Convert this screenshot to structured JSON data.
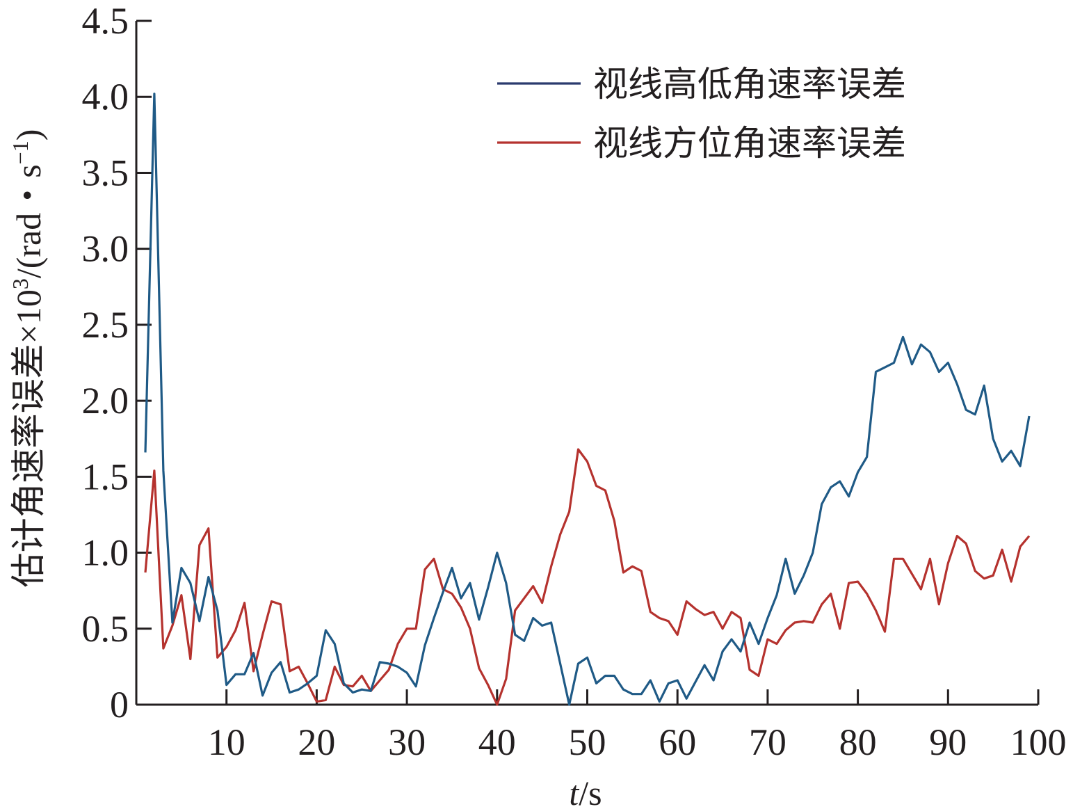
{
  "chart_data": {
    "type": "line",
    "xlabel_italic": "t",
    "xlabel_rest": "/s",
    "ylabel_main": "估计角速率误差×10",
    "ylabel_exp": "3",
    "ylabel_unit": "/(rad・s",
    "ylabel_unit_exp": "−1",
    "ylabel_close": ")",
    "xlim": [
      0,
      100
    ],
    "ylim": [
      0,
      4.5
    ],
    "x_ticks": [
      10,
      20,
      30,
      40,
      50,
      60,
      70,
      80,
      90,
      100
    ],
    "x_tick_labels": [
      "10",
      "20",
      "30",
      "40",
      "50",
      "60",
      "70",
      "80",
      "90",
      "100"
    ],
    "y_ticks": [
      0,
      0.5,
      1.0,
      1.5,
      2.0,
      2.5,
      3.0,
      3.5,
      4.0,
      4.5
    ],
    "y_tick_labels": [
      "0",
      "0.5",
      "1.0",
      "1.5",
      "2.0",
      "2.5",
      "3.0",
      "3.5",
      "4.0",
      "4.5"
    ],
    "legend_position": "top-right",
    "colors": {
      "axis": "#231f20",
      "elevation": "#1f5a86",
      "elevation_legend": "#2b3a6e",
      "azimuth": "#b5322e"
    },
    "series": [
      {
        "name": "视线高低角速率误差",
        "color": "#1f5a86",
        "legend_color": "#2b3a6e",
        "x": [
          1,
          2,
          3,
          4,
          5,
          6,
          7,
          8,
          9,
          10,
          11,
          12,
          13,
          14,
          15,
          16,
          17,
          18,
          19,
          20,
          21,
          22,
          23,
          24,
          25,
          26,
          27,
          28,
          29,
          30,
          31,
          32,
          33,
          34,
          35,
          36,
          37,
          38,
          39,
          40,
          41,
          42,
          43,
          44,
          45,
          46,
          47,
          48,
          49,
          50,
          51,
          52,
          53,
          54,
          55,
          56,
          57,
          58,
          59,
          60,
          61,
          62,
          63,
          64,
          65,
          66,
          67,
          68,
          69,
          70,
          71,
          72,
          73,
          74,
          75,
          76,
          77,
          78,
          79,
          80,
          81,
          82,
          83,
          84,
          85,
          86,
          87,
          88,
          89,
          90,
          91,
          92,
          93,
          94,
          95,
          96,
          97,
          98,
          99
        ],
        "values": [
          1.66,
          4.02,
          1.54,
          0.54,
          0.9,
          0.8,
          0.55,
          0.84,
          0.62,
          0.13,
          0.2,
          0.2,
          0.34,
          0.06,
          0.21,
          0.28,
          0.08,
          0.1,
          0.14,
          0.19,
          0.49,
          0.4,
          0.14,
          0.08,
          0.1,
          0.09,
          0.28,
          0.27,
          0.25,
          0.21,
          0.12,
          0.39,
          0.57,
          0.74,
          0.9,
          0.7,
          0.8,
          0.56,
          0.77,
          1.0,
          0.8,
          0.46,
          0.42,
          0.57,
          0.52,
          0.54,
          0.27,
          0.0,
          0.27,
          0.31,
          0.14,
          0.19,
          0.19,
          0.1,
          0.07,
          0.07,
          0.16,
          0.02,
          0.14,
          0.16,
          0.04,
          0.15,
          0.26,
          0.16,
          0.35,
          0.43,
          0.35,
          0.54,
          0.4,
          0.57,
          0.72,
          0.96,
          0.73,
          0.85,
          1.0,
          1.32,
          1.43,
          1.47,
          1.37,
          1.53,
          1.63,
          2.19,
          2.22,
          2.25,
          2.42,
          2.24,
          2.37,
          2.32,
          2.19,
          2.25,
          2.11,
          1.94,
          1.91,
          2.1,
          1.75,
          1.6,
          1.67,
          1.57,
          1.9
        ]
      },
      {
        "name": "视线方位角速率误差",
        "color": "#b5322e",
        "legend_color": "#b5322e",
        "x": [
          1,
          2,
          3,
          4,
          5,
          6,
          7,
          8,
          9,
          10,
          11,
          12,
          13,
          14,
          15,
          16,
          17,
          18,
          19,
          20,
          21,
          22,
          23,
          24,
          25,
          26,
          27,
          28,
          29,
          30,
          31,
          32,
          33,
          34,
          35,
          36,
          37,
          38,
          39,
          40,
          41,
          42,
          43,
          44,
          45,
          46,
          47,
          48,
          49,
          50,
          51,
          52,
          53,
          54,
          55,
          56,
          57,
          58,
          59,
          60,
          61,
          62,
          63,
          64,
          65,
          66,
          67,
          68,
          69,
          70,
          71,
          72,
          73,
          74,
          75,
          76,
          77,
          78,
          79,
          80,
          81,
          82,
          83,
          84,
          85,
          86,
          87,
          88,
          89,
          90,
          91,
          92,
          93,
          94,
          95,
          96,
          97,
          98,
          99
        ],
        "values": [
          0.87,
          1.54,
          0.37,
          0.52,
          0.72,
          0.3,
          1.05,
          1.16,
          0.31,
          0.38,
          0.49,
          0.67,
          0.22,
          0.46,
          0.68,
          0.66,
          0.22,
          0.25,
          0.14,
          0.02,
          0.03,
          0.25,
          0.13,
          0.12,
          0.19,
          0.09,
          0.16,
          0.23,
          0.4,
          0.5,
          0.5,
          0.89,
          0.96,
          0.76,
          0.73,
          0.64,
          0.5,
          0.24,
          0.13,
          0.0,
          0.17,
          0.62,
          0.7,
          0.78,
          0.67,
          0.91,
          1.12,
          1.27,
          1.68,
          1.6,
          1.44,
          1.41,
          1.21,
          0.87,
          0.91,
          0.88,
          0.61,
          0.57,
          0.55,
          0.46,
          0.68,
          0.63,
          0.59,
          0.61,
          0.5,
          0.61,
          0.57,
          0.23,
          0.19,
          0.43,
          0.4,
          0.49,
          0.54,
          0.55,
          0.54,
          0.66,
          0.73,
          0.5,
          0.8,
          0.81,
          0.73,
          0.62,
          0.48,
          0.96,
          0.96,
          0.86,
          0.76,
          0.96,
          0.66,
          0.93,
          1.11,
          1.06,
          0.88,
          0.83,
          0.85,
          1.02,
          0.81,
          1.04,
          1.11
        ]
      }
    ]
  }
}
